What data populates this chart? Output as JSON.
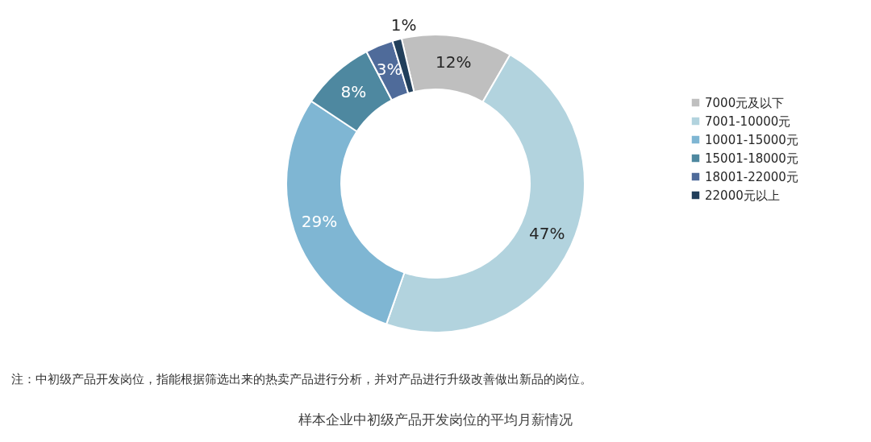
{
  "chart_data": {
    "type": "donut",
    "title": "样本企业中初级产品开发岗位的平均月薪情况",
    "categories": [
      "7000元及以下",
      "7001-10000元",
      "10001-15000元",
      "15001-18000元",
      "18001-22000元",
      "22000元以上"
    ],
    "values": [
      12,
      47,
      29,
      8,
      3,
      1
    ],
    "value_labels": [
      "12%",
      "47%",
      "29%",
      "8%",
      "3%",
      "1%"
    ],
    "colors": [
      "#bfbfbf",
      "#b2d3de",
      "#7fb6d3",
      "#4e88a0",
      "#4f6b9a",
      "#213f5b"
    ],
    "legend": "right",
    "annotations": [
      "注：中初级产品开发岗位，指能根据筛选出来的热卖产品进行分析，并对产品进行升级改善做出新品的岗位。"
    ]
  }
}
